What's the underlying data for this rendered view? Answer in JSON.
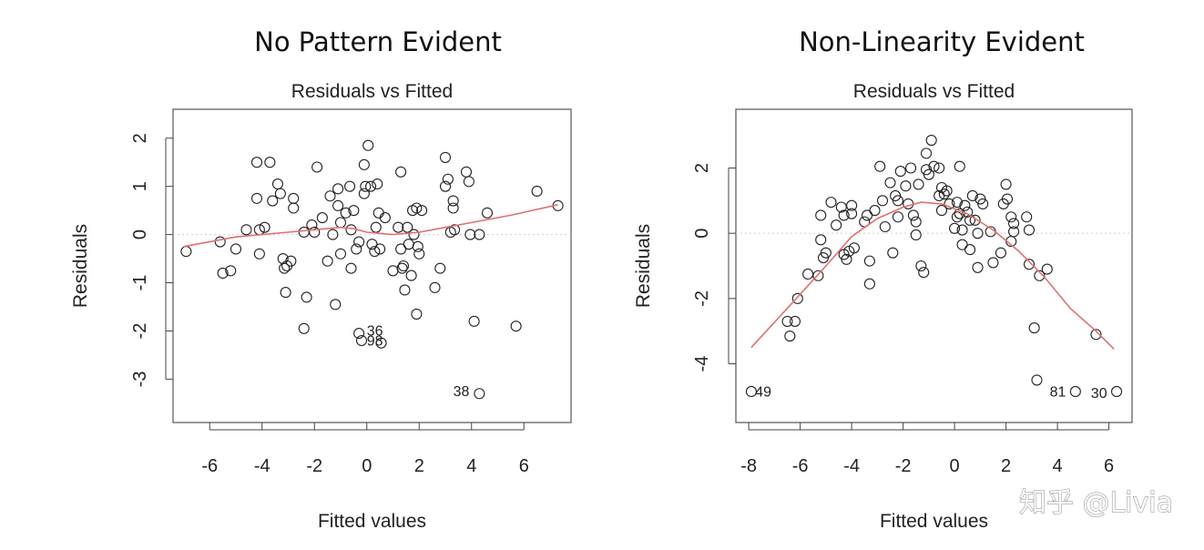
{
  "chart_data": [
    {
      "type": "scatter",
      "heading": "No Pattern Evident",
      "title": "Residuals vs Fitted",
      "xlabel": "Fitted values",
      "ylabel": "Residuals",
      "xlim": [
        -7.4,
        7.8
      ],
      "ylim": [
        -3.9,
        2.6
      ],
      "xticks": [
        -6,
        -4,
        -2,
        0,
        2,
        4,
        6
      ],
      "yticks": [
        -3,
        -2,
        -1,
        0,
        1,
        2
      ],
      "zero_line": true,
      "smoother_color": "#e07070",
      "points": [
        [
          -6.9,
          -0.35
        ],
        [
          -5.6,
          -0.15
        ],
        [
          -5.5,
          -0.8
        ],
        [
          -5.2,
          -0.75
        ],
        [
          -5.0,
          -0.3
        ],
        [
          -4.6,
          0.1
        ],
        [
          -4.2,
          1.5
        ],
        [
          -4.2,
          0.75
        ],
        [
          -4.1,
          0.1
        ],
        [
          -4.1,
          -0.4
        ],
        [
          -3.9,
          0.15
        ],
        [
          -3.7,
          1.5
        ],
        [
          -3.6,
          0.7
        ],
        [
          -3.4,
          1.05
        ],
        [
          -3.3,
          0.85
        ],
        [
          -3.2,
          -0.5
        ],
        [
          -3.15,
          -0.7
        ],
        [
          -3.1,
          -1.2
        ],
        [
          -3.05,
          -0.65
        ],
        [
          -2.9,
          -0.55
        ],
        [
          -2.8,
          0.75
        ],
        [
          -2.8,
          0.55
        ],
        [
          -2.4,
          0.05
        ],
        [
          -2.4,
          -1.95
        ],
        [
          -2.3,
          -1.3
        ],
        [
          -2.1,
          0.2
        ],
        [
          -2.0,
          0.05
        ],
        [
          -1.9,
          1.4
        ],
        [
          -1.7,
          0.35
        ],
        [
          -1.5,
          -0.55
        ],
        [
          -1.4,
          0.8
        ],
        [
          -1.3,
          0.0
        ],
        [
          -1.2,
          -1.45
        ],
        [
          -1.1,
          0.95
        ],
        [
          -1.1,
          0.6
        ],
        [
          -1.0,
          0.25
        ],
        [
          -1.0,
          -0.4
        ],
        [
          -0.8,
          0.45
        ],
        [
          -0.65,
          1.0
        ],
        [
          -0.6,
          0.1
        ],
        [
          -0.6,
          -0.7
        ],
        [
          -0.5,
          0.5
        ],
        [
          -0.4,
          -0.3
        ],
        [
          -0.3,
          -0.15
        ],
        [
          -0.3,
          -2.05
        ],
        [
          -0.2,
          -2.2
        ],
        [
          -0.1,
          1.45
        ],
        [
          -0.05,
          1.0
        ],
        [
          -0.1,
          0.85
        ],
        [
          0.05,
          1.85
        ],
        [
          0.15,
          1.0
        ],
        [
          0.2,
          -0.2
        ],
        [
          0.3,
          -0.35
        ],
        [
          0.35,
          0.15
        ],
        [
          0.4,
          1.05
        ],
        [
          0.45,
          0.45
        ],
        [
          0.5,
          -0.3
        ],
        [
          0.55,
          -2.25
        ],
        [
          0.7,
          0.35
        ],
        [
          1.0,
          -0.75
        ],
        [
          1.2,
          0.15
        ],
        [
          1.3,
          1.3
        ],
        [
          1.3,
          -0.3
        ],
        [
          1.35,
          -0.7
        ],
        [
          1.4,
          -0.65
        ],
        [
          1.45,
          -1.15
        ],
        [
          1.55,
          0.15
        ],
        [
          1.6,
          -0.2
        ],
        [
          1.7,
          -0.85
        ],
        [
          1.75,
          0.5
        ],
        [
          1.8,
          0.0
        ],
        [
          1.9,
          -1.65
        ],
        [
          1.9,
          0.55
        ],
        [
          1.95,
          -0.25
        ],
        [
          2.0,
          -0.4
        ],
        [
          2.1,
          0.5
        ],
        [
          2.6,
          -1.1
        ],
        [
          2.8,
          -0.7
        ],
        [
          3.0,
          1.0
        ],
        [
          3.0,
          1.6
        ],
        [
          3.1,
          1.15
        ],
        [
          3.2,
          0.05
        ],
        [
          3.3,
          0.7
        ],
        [
          3.3,
          0.55
        ],
        [
          3.35,
          0.1
        ],
        [
          3.8,
          1.3
        ],
        [
          3.9,
          1.1
        ],
        [
          3.95,
          0.0
        ],
        [
          4.1,
          -1.8
        ],
        [
          4.3,
          0.0
        ],
        [
          4.3,
          -3.3
        ],
        [
          4.6,
          0.45
        ],
        [
          5.7,
          -1.9
        ],
        [
          6.5,
          0.9
        ],
        [
          7.3,
          0.6
        ]
      ],
      "smoother": [
        [
          -7.0,
          -0.25
        ],
        [
          -5.0,
          -0.05
        ],
        [
          -3.0,
          0.05
        ],
        [
          -2.0,
          0.1
        ],
        [
          -1.0,
          0.15
        ],
        [
          -0.5,
          0.12
        ],
        [
          0.0,
          0.05
        ],
        [
          1.0,
          0.0
        ],
        [
          2.0,
          0.05
        ],
        [
          3.0,
          0.15
        ],
        [
          4.0,
          0.25
        ],
        [
          5.5,
          0.4
        ],
        [
          7.3,
          0.62
        ]
      ],
      "labels": [
        {
          "text": "36",
          "x": 0.0,
          "y": -2.1
        },
        {
          "text": "98",
          "x": 0.0,
          "y": -2.3
        },
        {
          "text": "38",
          "x": 3.3,
          "y": -3.35
        }
      ]
    },
    {
      "type": "scatter",
      "heading": "Non-Linearity Evident",
      "title": "Residuals vs Fitted",
      "xlabel": "Fitted values",
      "ylabel": "Residuals",
      "xlim": [
        -8.5,
        6.9
      ],
      "ylim": [
        -5.8,
        3.8
      ],
      "xticks": [
        -8,
        -6,
        -4,
        -2,
        0,
        2,
        4,
        6
      ],
      "yticks": [
        -4,
        -2,
        0,
        2
      ],
      "zero_line": true,
      "smoother_color": "#e07070",
      "points": [
        [
          -7.9,
          -4.85
        ],
        [
          -6.5,
          -2.7
        ],
        [
          -6.4,
          -3.15
        ],
        [
          -6.2,
          -2.7
        ],
        [
          -6.1,
          -2.0
        ],
        [
          -5.7,
          -1.25
        ],
        [
          -5.3,
          -1.3
        ],
        [
          -5.2,
          -0.2
        ],
        [
          -5.2,
          0.55
        ],
        [
          -5.1,
          -0.75
        ],
        [
          -5.0,
          -0.6
        ],
        [
          -4.8,
          0.95
        ],
        [
          -4.6,
          0.25
        ],
        [
          -4.4,
          0.8
        ],
        [
          -4.3,
          0.55
        ],
        [
          -4.3,
          -0.65
        ],
        [
          -4.2,
          -0.8
        ],
        [
          -4.1,
          -0.55
        ],
        [
          -4.0,
          0.85
        ],
        [
          -4.0,
          0.6
        ],
        [
          -3.9,
          -0.45
        ],
        [
          -3.5,
          0.35
        ],
        [
          -3.4,
          0.55
        ],
        [
          -3.3,
          -1.55
        ],
        [
          -3.3,
          -0.85
        ],
        [
          -3.1,
          0.7
        ],
        [
          -2.9,
          2.05
        ],
        [
          -2.8,
          1.0
        ],
        [
          -2.7,
          0.2
        ],
        [
          -2.5,
          1.55
        ],
        [
          -2.4,
          -0.6
        ],
        [
          -2.3,
          1.15
        ],
        [
          -2.2,
          1.0
        ],
        [
          -2.2,
          0.5
        ],
        [
          -2.1,
          1.9
        ],
        [
          -1.9,
          1.45
        ],
        [
          -1.8,
          0.9
        ],
        [
          -1.7,
          2.0
        ],
        [
          -1.6,
          0.55
        ],
        [
          -1.5,
          0.35
        ],
        [
          -1.5,
          -0.05
        ],
        [
          -1.4,
          1.5
        ],
        [
          -1.3,
          -1.0
        ],
        [
          -1.2,
          -1.2
        ],
        [
          -1.1,
          2.45
        ],
        [
          -1.1,
          1.95
        ],
        [
          -1.0,
          1.8
        ],
        [
          -0.9,
          2.85
        ],
        [
          -0.8,
          2.05
        ],
        [
          -0.6,
          2.0
        ],
        [
          -0.6,
          1.15
        ],
        [
          -0.5,
          0.7
        ],
        [
          -0.5,
          1.4
        ],
        [
          -0.4,
          1.2
        ],
        [
          -0.3,
          1.3
        ],
        [
          -0.2,
          0.9
        ],
        [
          0.0,
          0.15
        ],
        [
          0.1,
          0.95
        ],
        [
          0.1,
          0.5
        ],
        [
          0.2,
          2.05
        ],
        [
          0.2,
          0.6
        ],
        [
          0.3,
          0.1
        ],
        [
          0.3,
          -0.35
        ],
        [
          0.4,
          0.85
        ],
        [
          0.5,
          0.65
        ],
        [
          0.6,
          0.4
        ],
        [
          0.6,
          -0.5
        ],
        [
          0.7,
          1.15
        ],
        [
          0.8,
          0.4
        ],
        [
          0.9,
          -1.05
        ],
        [
          0.9,
          0.0
        ],
        [
          1.0,
          1.05
        ],
        [
          1.1,
          0.9
        ],
        [
          1.4,
          0.05
        ],
        [
          1.5,
          -0.9
        ],
        [
          1.8,
          -0.6
        ],
        [
          1.9,
          0.9
        ],
        [
          2.0,
          1.5
        ],
        [
          2.05,
          1.05
        ],
        [
          2.2,
          0.5
        ],
        [
          2.2,
          -0.25
        ],
        [
          2.3,
          0.3
        ],
        [
          2.3,
          0.05
        ],
        [
          2.8,
          0.5
        ],
        [
          2.9,
          0.1
        ],
        [
          2.9,
          -0.95
        ],
        [
          3.1,
          -2.9
        ],
        [
          3.2,
          -4.5
        ],
        [
          3.3,
          -1.3
        ],
        [
          3.6,
          -1.1
        ],
        [
          4.7,
          -4.85
        ],
        [
          5.5,
          -3.1
        ],
        [
          6.3,
          -4.85
        ]
      ],
      "smoother": [
        [
          -7.9,
          -3.5
        ],
        [
          -6.5,
          -2.3
        ],
        [
          -5.0,
          -1.0
        ],
        [
          -4.0,
          -0.1
        ],
        [
          -3.0,
          0.45
        ],
        [
          -2.0,
          0.8
        ],
        [
          -1.3,
          0.95
        ],
        [
          -0.5,
          0.9
        ],
        [
          0.5,
          0.6
        ],
        [
          1.5,
          0.1
        ],
        [
          2.5,
          -0.55
        ],
        [
          3.5,
          -1.35
        ],
        [
          4.5,
          -2.3
        ],
        [
          5.5,
          -3.0
        ],
        [
          6.2,
          -3.55
        ]
      ],
      "labels": [
        {
          "text": "49",
          "x": -7.75,
          "y": -5.0
        },
        {
          "text": "81",
          "x": 3.7,
          "y": -5.0
        },
        {
          "text": "30",
          "x": 5.3,
          "y": -5.05
        }
      ]
    }
  ],
  "watermark": "知乎 @Livia"
}
